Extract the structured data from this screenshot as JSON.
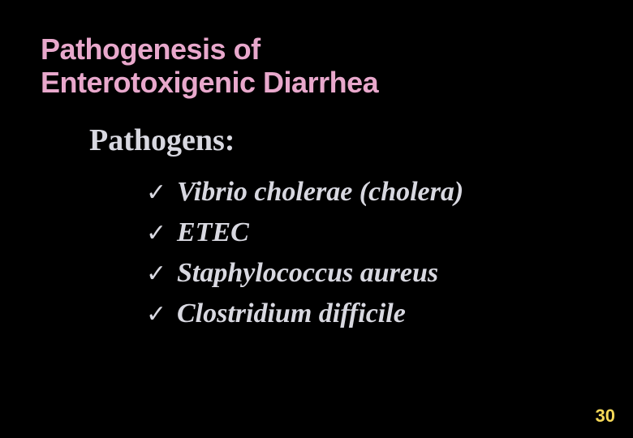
{
  "slide": {
    "background_color": "#000000",
    "title": {
      "line1": "Pathogenesis of",
      "line2": "Enterotoxigenic Diarrhea",
      "color": "#e8a8cc",
      "font_family": "Arial",
      "font_weight": "900",
      "font_size_pt": 27
    },
    "subtitle": {
      "text": "Pathogens:",
      "color": "#d8d8e0",
      "font_family": "Times New Roman",
      "font_weight": "bold",
      "font_size_pt": 29
    },
    "bullet_glyph": "✓",
    "bullet_color": "#d8d8e0",
    "items": [
      {
        "text": "Vibrio cholerae (cholera)"
      },
      {
        "text": "ETEC"
      },
      {
        "text": "Staphylococcus aureus"
      },
      {
        "text": "Clostridium difficile"
      }
    ],
    "item_style": {
      "color": "#d8d8e0",
      "font_family": "Times New Roman",
      "font_style": "italic",
      "font_weight": "bold",
      "font_size_pt": 26
    },
    "page_number": {
      "text": "30",
      "color": "#f5d858",
      "font_family": "Arial",
      "font_weight": "bold",
      "font_size_pt": 17
    }
  }
}
